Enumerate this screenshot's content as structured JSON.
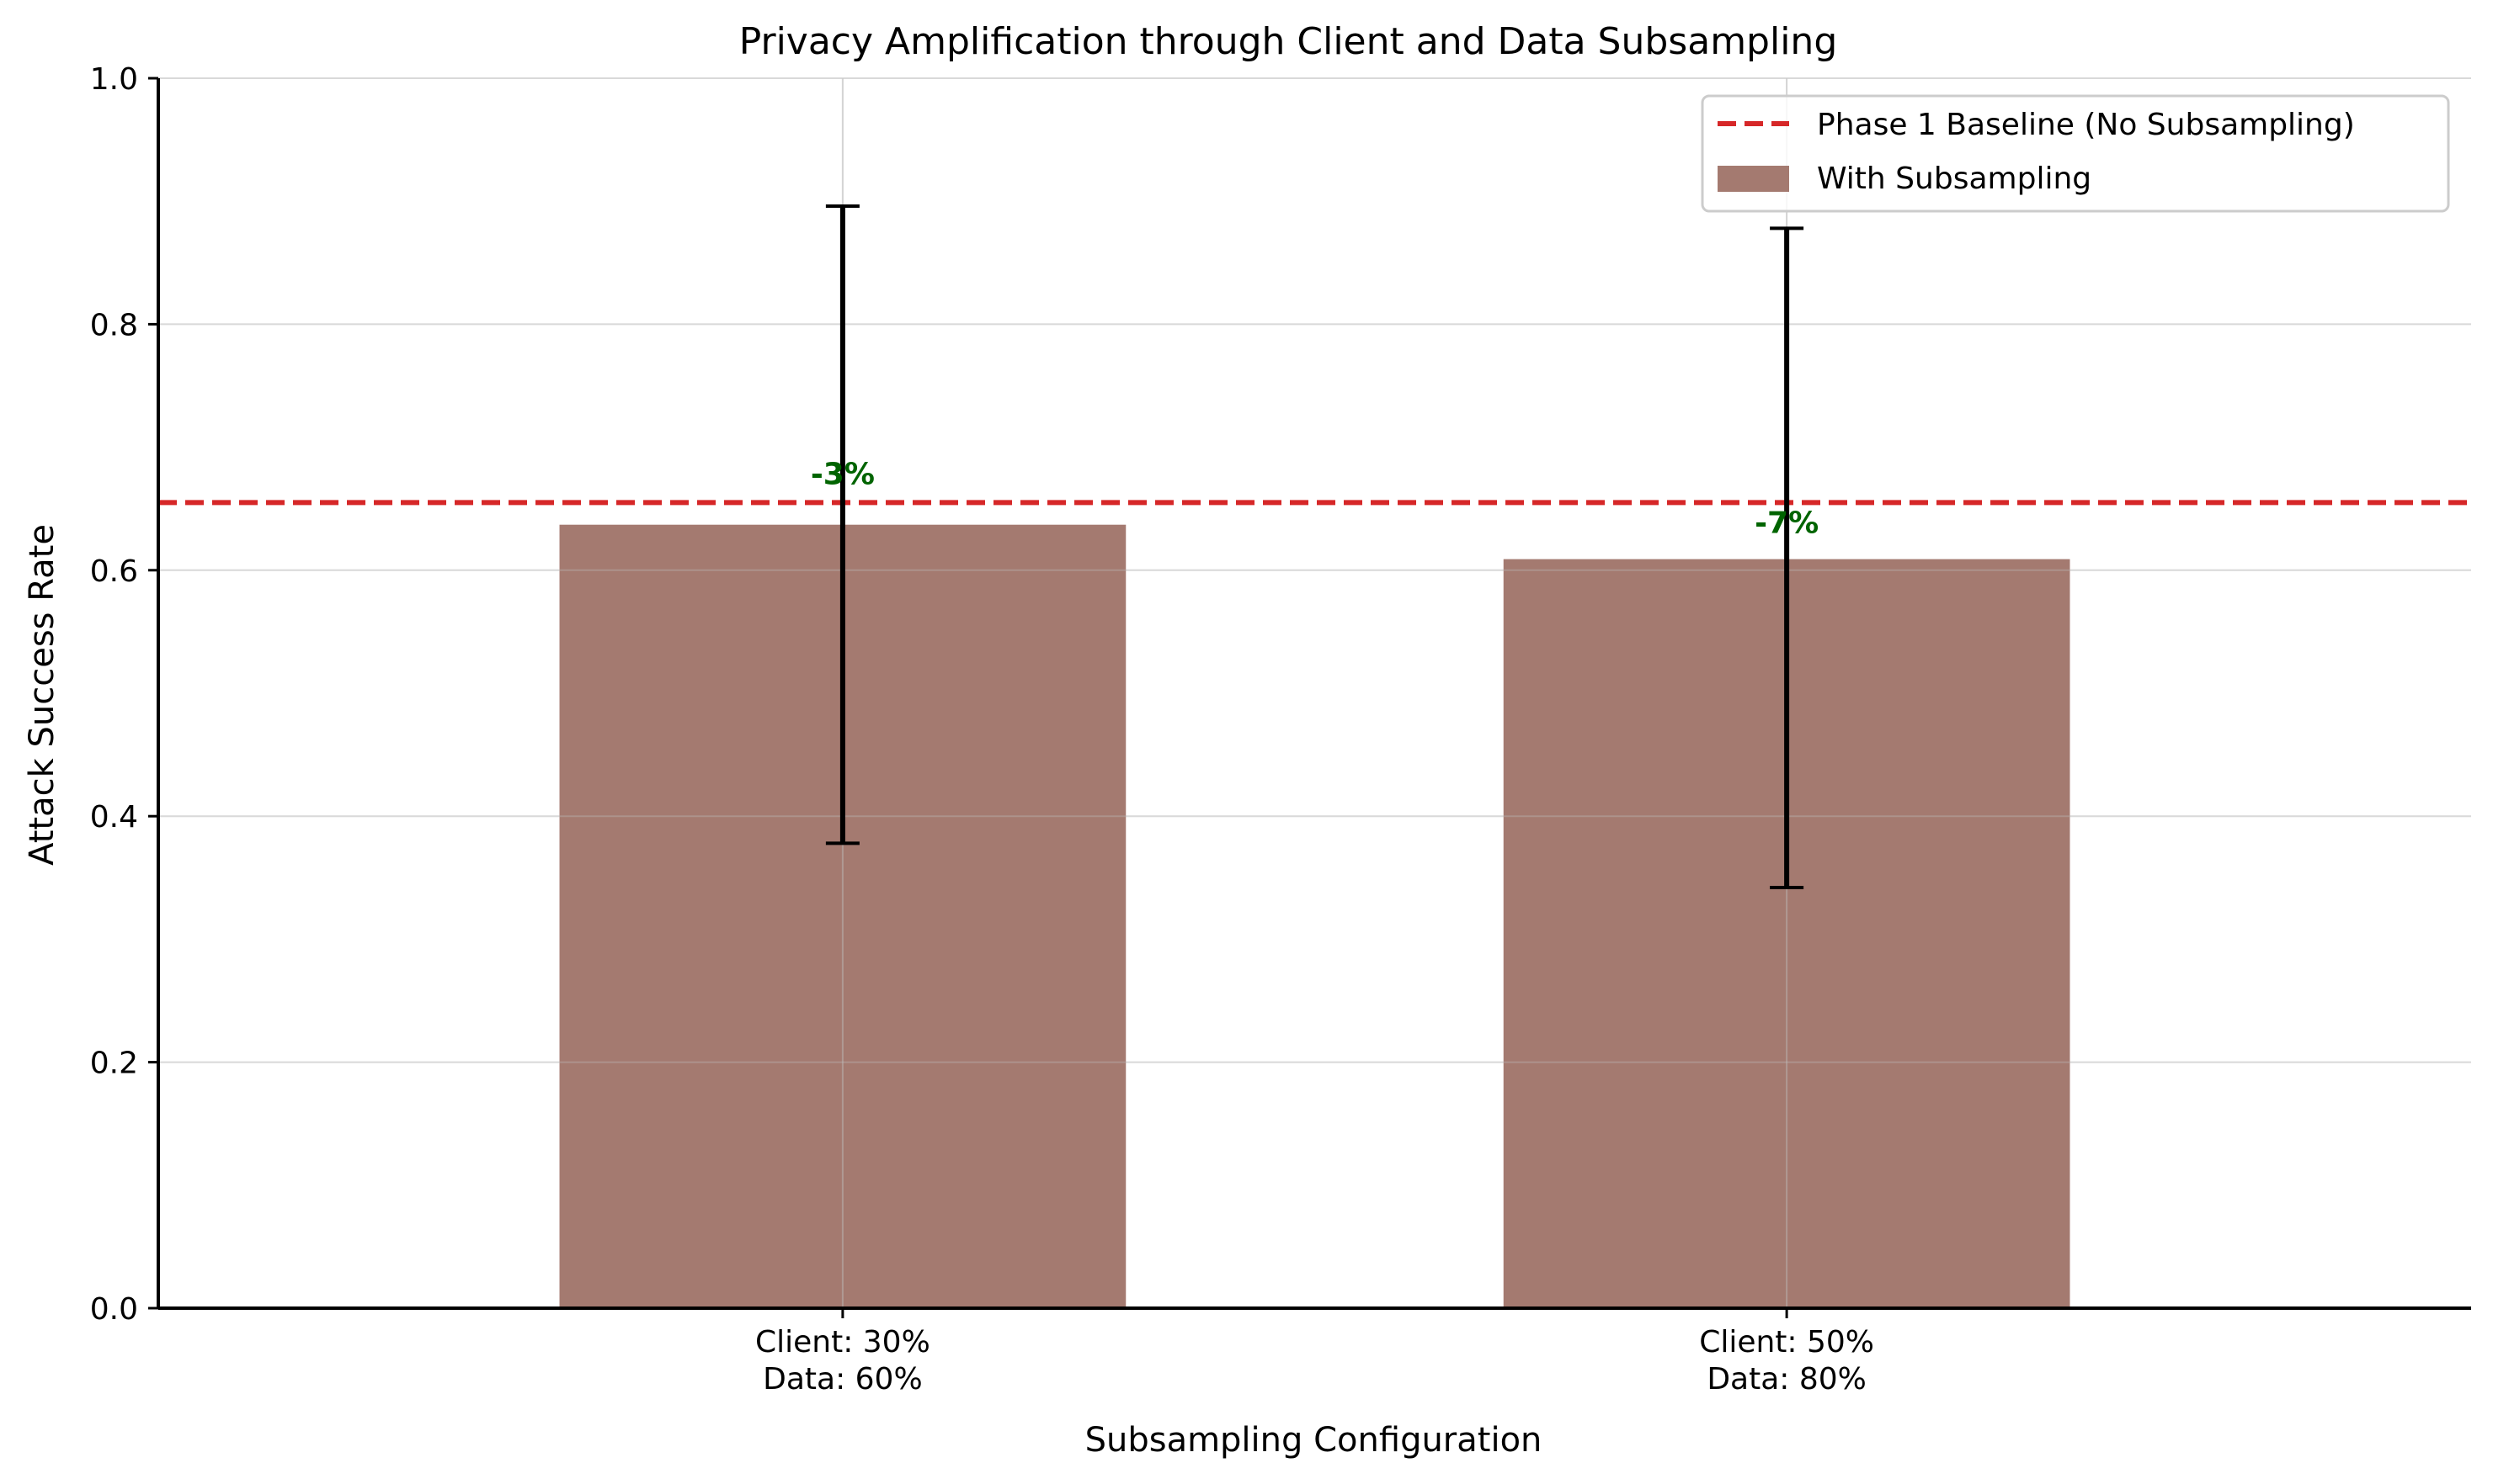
{
  "chart_data": {
    "type": "bar",
    "title": "Privacy Amplification through Client and Data Subsampling",
    "xlabel": "Subsampling Configuration",
    "ylabel": "Attack Success Rate",
    "ylim": [
      0,
      1.0
    ],
    "yticks": [
      "0.0",
      "0.2",
      "0.4",
      "0.6",
      "0.8",
      "1.0"
    ],
    "grid": true,
    "legend_position": "top-right",
    "categories": [
      [
        "Client: 30%",
        "Data: 60%"
      ],
      [
        "Client: 50%",
        "Data: 80%"
      ]
    ],
    "series": [
      {
        "name": "With Subsampling",
        "color": "#a47a70",
        "values": [
          0.637,
          0.609
        ],
        "error_low": [
          0.378,
          0.342
        ],
        "error_high": [
          0.896,
          0.878
        ]
      }
    ],
    "baseline": {
      "name": "Phase 1 Baseline (No Subsampling)",
      "value": 0.655,
      "color": "#d62728",
      "style": "dashed"
    },
    "annotations": [
      {
        "text": "-3%",
        "color": "#006400"
      },
      {
        "text": "-7%",
        "color": "#006400"
      }
    ]
  }
}
